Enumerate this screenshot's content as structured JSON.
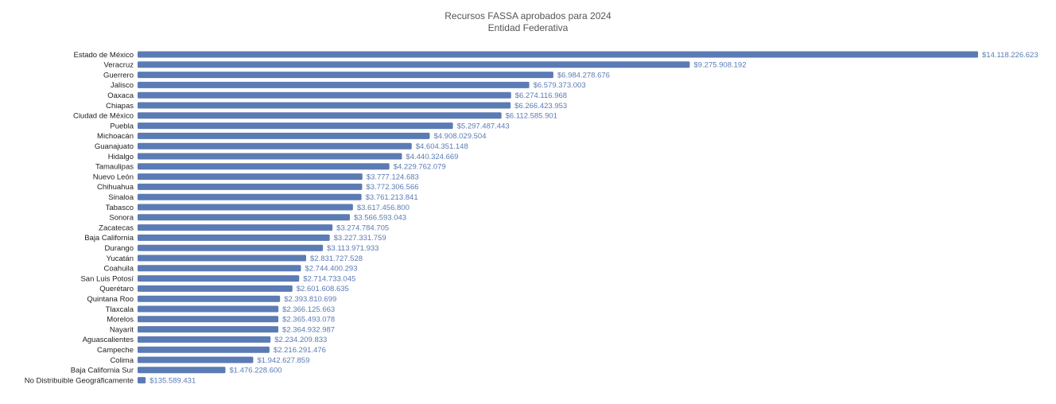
{
  "chart_data": {
    "type": "bar",
    "orientation": "horizontal",
    "title": "Recursos FASSA aprobados para 2024",
    "subtitle": "Entidad Federativa",
    "bar_color": "#5b7bb5",
    "label_color": "#5b7bb5",
    "grid": false,
    "xlim": [
      0,
      14118226623
    ],
    "categories": [
      "Estado de México",
      "Veracruz",
      "Guerrero",
      "Jalisco",
      "Oaxaca",
      "Chiapas",
      "Ciudad de México",
      "Puebla",
      "Michoacán",
      "Guanajuato",
      "Hidalgo",
      "Tamaulipas",
      "Nuevo León",
      "Chihuahua",
      "Sinaloa",
      "Tabasco",
      "Sonora",
      "Zacatecas",
      "Baja California",
      "Durango",
      "Yucatán",
      "Coahuila",
      "San Luis Potosí",
      "Querétaro",
      "Quintana Roo",
      "Tlaxcala",
      "Morelos",
      "Nayarit",
      "Aguascalientes",
      "Campeche",
      "Colima",
      "Baja California Sur",
      "No Distribuible Geográficamente"
    ],
    "values": [
      14118226623,
      9275908192,
      6984278676,
      6579373003,
      6274116968,
      6266423953,
      6112585901,
      5297487443,
      4908029504,
      4604351148,
      4440324669,
      4229762079,
      3777124683,
      3772306566,
      3761213841,
      3617456800,
      3566593043,
      3274784705,
      3227331759,
      3113971933,
      2831727528,
      2744400293,
      2714733045,
      2601608635,
      2393810699,
      2366125663,
      2365493078,
      2364932987,
      2234209833,
      2216291476,
      1942627859,
      1476228600,
      135589431
    ],
    "value_labels": [
      "$14.118.226.623",
      "$9.275.908.192",
      "$6.984.278.676",
      "$6.579.373.003",
      "$6.274.116.968",
      "$6.266.423.953",
      "$6.112.585.901",
      "$5.297.487.443",
      "$4.908.029.504",
      "$4.604.351.148",
      "$4.440.324.669",
      "$4.229.762.079",
      "$3.777.124.683",
      "$3.772.306.566",
      "$3.761.213.841",
      "$3.617.456.800",
      "$3.566.593.043",
      "$3.274.784.705",
      "$3.227.331.759",
      "$3.113.971.933",
      "$2.831.727.528",
      "$2.744.400.293",
      "$2.714.733.045",
      "$2.601.608.635",
      "$2.393.810.699",
      "$2.366.125.663",
      "$2.365.493.078",
      "$2.364.932.987",
      "$2.234.209.833",
      "$2.216.291.476",
      "$1.942.627.859",
      "$1.476.228.600",
      "$135.589.431"
    ]
  }
}
